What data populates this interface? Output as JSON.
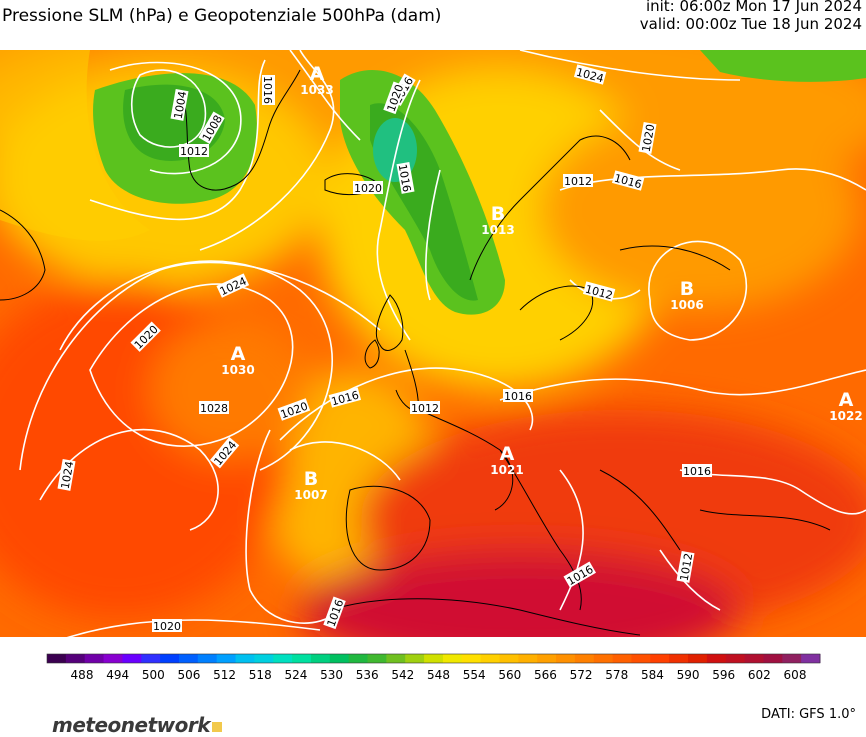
{
  "header": {
    "title": "Pressione SLM (hPa) e Geopotenziale 500hPa (dam)",
    "init": "init: 06:00z Mon 17 Jun 2024",
    "valid": "valid: 00:00z Tue 18 Jun 2024"
  },
  "isobar_labels": [
    {
      "text": "1004"
    },
    {
      "text": "1008"
    },
    {
      "text": "1012"
    },
    {
      "text": "1016"
    },
    {
      "text": "1016"
    },
    {
      "text": "1020"
    },
    {
      "text": "1016"
    },
    {
      "text": "1020"
    },
    {
      "text": "1024"
    },
    {
      "text": "1020"
    },
    {
      "text": "1012"
    },
    {
      "text": "1016"
    },
    {
      "text": "1012"
    },
    {
      "text": "1024"
    },
    {
      "text": "1020"
    },
    {
      "text": "1028"
    },
    {
      "text": "1020"
    },
    {
      "text": "1016"
    },
    {
      "text": "1012"
    },
    {
      "text": "1016"
    },
    {
      "text": "1024"
    },
    {
      "text": "1024"
    },
    {
      "text": "1016"
    },
    {
      "text": "1012"
    },
    {
      "text": "1016"
    },
    {
      "text": "1016"
    },
    {
      "text": "1020"
    }
  ],
  "pressure_centers": [
    {
      "type": "A",
      "value": "1033"
    },
    {
      "type": "B",
      "value": "1013"
    },
    {
      "type": "B",
      "value": "1006"
    },
    {
      "type": "A",
      "value": "1030"
    },
    {
      "type": "B",
      "value": "1007"
    },
    {
      "type": "A",
      "value": "1021"
    },
    {
      "type": "A",
      "value": "1022"
    }
  ],
  "colorbar": {
    "ticks": [
      "488",
      "494",
      "500",
      "506",
      "512",
      "518",
      "524",
      "530",
      "536",
      "542",
      "548",
      "554",
      "560",
      "566",
      "572",
      "578",
      "584",
      "590",
      "596",
      "602",
      "608"
    ],
    "colors": [
      "#3b0050",
      "#55007a",
      "#7000a8",
      "#8800d0",
      "#6a00ff",
      "#3030ff",
      "#0040ff",
      "#0060ff",
      "#0080ff",
      "#00a0ff",
      "#00c0f0",
      "#00d0e0",
      "#00e0c0",
      "#00e0a0",
      "#00d080",
      "#00c060",
      "#20b840",
      "#40b830",
      "#70c020",
      "#a0d010",
      "#d0e000",
      "#f0e800",
      "#ffe000",
      "#ffd000",
      "#ffc000",
      "#ffb000",
      "#ffa000",
      "#ff9000",
      "#ff8000",
      "#ff7000",
      "#ff6000",
      "#ff5000",
      "#ff4000",
      "#f03000",
      "#e02000",
      "#d01010",
      "#c01020",
      "#b01030",
      "#a01040",
      "#902060",
      "#8030a0"
    ]
  },
  "footer": {
    "logo": "meteonetwork",
    "dati": "DATI: GFS 1.0°"
  }
}
